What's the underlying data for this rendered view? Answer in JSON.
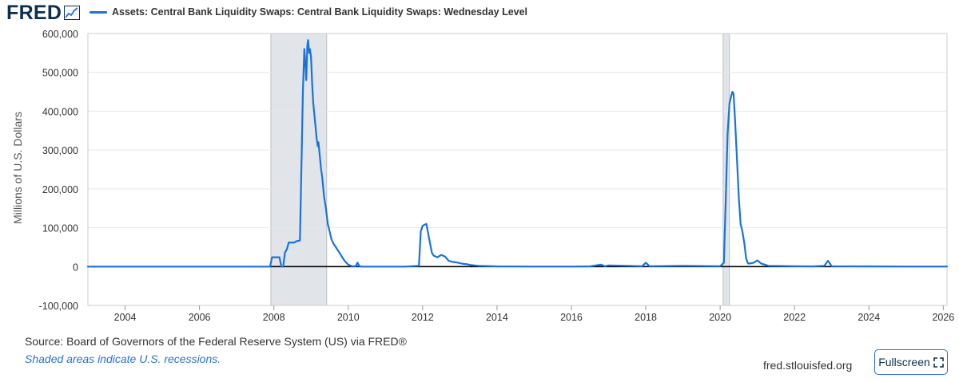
{
  "logo": {
    "text": "FRED",
    "icon": "fred-chart-icon"
  },
  "footer": {
    "source": "Source: Board of Governors of the Federal Reserve System (US) via FRED®",
    "note": "Shaded areas indicate U.S. recessions.",
    "site": "fred.stlouisfed.org",
    "fullscreen_label": "Fullscreen",
    "fullscreen_icon": "fullscreen-icon"
  },
  "colors": {
    "series": "#1a73d9",
    "recession": "#e1e5ea",
    "zero_line": "#000000",
    "grid": "#e6e6e6",
    "axis_text": "#333333",
    "brand": "#0c2f4f",
    "link": "#2a71d0"
  },
  "chart_data": {
    "type": "line",
    "title": "",
    "xlabel": "",
    "ylabel": "Millions of U.S. Dollars",
    "xlim": [
      2003.0,
      2026.1
    ],
    "ylim": [
      -100000,
      600000
    ],
    "y_ticks": [
      {
        "value": 600000,
        "label": "600,000"
      },
      {
        "value": 500000,
        "label": "500,000"
      },
      {
        "value": 400000,
        "label": "400,000"
      },
      {
        "value": 300000,
        "label": "300,000"
      },
      {
        "value": 200000,
        "label": "200,000"
      },
      {
        "value": 100000,
        "label": "100,000"
      },
      {
        "value": 0,
        "label": "0"
      },
      {
        "value": -100000,
        "label": "-100,000"
      }
    ],
    "x_ticks": [
      {
        "value": 2004,
        "label": "2004"
      },
      {
        "value": 2006,
        "label": "2006"
      },
      {
        "value": 2008,
        "label": "2008"
      },
      {
        "value": 2010,
        "label": "2010"
      },
      {
        "value": 2012,
        "label": "2012"
      },
      {
        "value": 2014,
        "label": "2014"
      },
      {
        "value": 2016,
        "label": "2016"
      },
      {
        "value": 2018,
        "label": "2018"
      },
      {
        "value": 2020,
        "label": "2020"
      },
      {
        "value": 2022,
        "label": "2022"
      },
      {
        "value": 2024,
        "label": "2024"
      },
      {
        "value": 2026,
        "label": "2026"
      }
    ],
    "grid": true,
    "recessions": [
      {
        "start": 2007.92,
        "end": 2009.42
      },
      {
        "start": 2020.08,
        "end": 2020.25
      }
    ],
    "series": [
      {
        "name": "Assets: Central Bank Liquidity Swaps: Central Bank Liquidity Swaps: Wednesday Level",
        "x": [
          2003.0,
          2007.9,
          2007.95,
          2008.15,
          2008.2,
          2008.25,
          2008.3,
          2008.35,
          2008.4,
          2008.45,
          2008.5,
          2008.55,
          2008.6,
          2008.7,
          2008.75,
          2008.78,
          2008.82,
          2008.85,
          2008.87,
          2008.9,
          2008.92,
          2008.95,
          2008.97,
          2009.0,
          2009.03,
          2009.06,
          2009.1,
          2009.12,
          2009.15,
          2009.18,
          2009.2,
          2009.23,
          2009.27,
          2009.3,
          2009.35,
          2009.4,
          2009.45,
          2009.5,
          2009.55,
          2009.6,
          2009.7,
          2009.8,
          2009.9,
          2010.0,
          2010.1,
          2010.2,
          2010.25,
          2010.3,
          2010.4,
          2011.0,
          2011.5,
          2011.9,
          2011.95,
          2012.0,
          2012.1,
          2012.2,
          2012.25,
          2012.3,
          2012.4,
          2012.5,
          2012.6,
          2012.7,
          2012.8,
          2012.9,
          2013.0,
          2013.1,
          2013.2,
          2013.3,
          2013.5,
          2014.0,
          2015.0,
          2016.0,
          2016.5,
          2016.8,
          2016.9,
          2017.0,
          2017.5,
          2017.9,
          2018.0,
          2018.1,
          2019.0,
          2020.0,
          2020.1,
          2020.15,
          2020.2,
          2020.25,
          2020.3,
          2020.33,
          2020.36,
          2020.4,
          2020.45,
          2020.5,
          2020.55,
          2020.6,
          2020.65,
          2020.7,
          2020.75,
          2020.8,
          2020.9,
          2021.0,
          2021.1,
          2021.3,
          2022.0,
          2022.5,
          2022.8,
          2022.9,
          2023.0,
          2024.0,
          2025.0,
          2026.1
        ],
        "values": [
          0,
          0,
          24000,
          24000,
          0,
          0,
          36000,
          45000,
          62000,
          62000,
          62000,
          62000,
          65000,
          67000,
          300000,
          450000,
          560000,
          520000,
          480000,
          570000,
          583000,
          550000,
          560000,
          540000,
          470000,
          420000,
          380000,
          360000,
          330000,
          310000,
          320000,
          290000,
          250000,
          230000,
          180000,
          150000,
          110000,
          90000,
          70000,
          60000,
          45000,
          30000,
          15000,
          5000,
          1000,
          1000,
          10000,
          1000,
          0,
          0,
          0,
          2000,
          90000,
          105000,
          110000,
          60000,
          35000,
          28000,
          24000,
          30000,
          26000,
          15000,
          12000,
          11000,
          9000,
          7000,
          6000,
          4000,
          2000,
          500,
          200,
          200,
          500,
          5000,
          1000,
          3000,
          2000,
          1000,
          10000,
          1000,
          2000,
          1000,
          10000,
          170000,
          340000,
          420000,
          440000,
          450000,
          445000,
          380000,
          280000,
          180000,
          110000,
          90000,
          60000,
          20000,
          8000,
          8000,
          10000,
          16000,
          8000,
          2000,
          1000,
          500,
          2000,
          15000,
          1000,
          500,
          200,
          200
        ]
      }
    ]
  }
}
